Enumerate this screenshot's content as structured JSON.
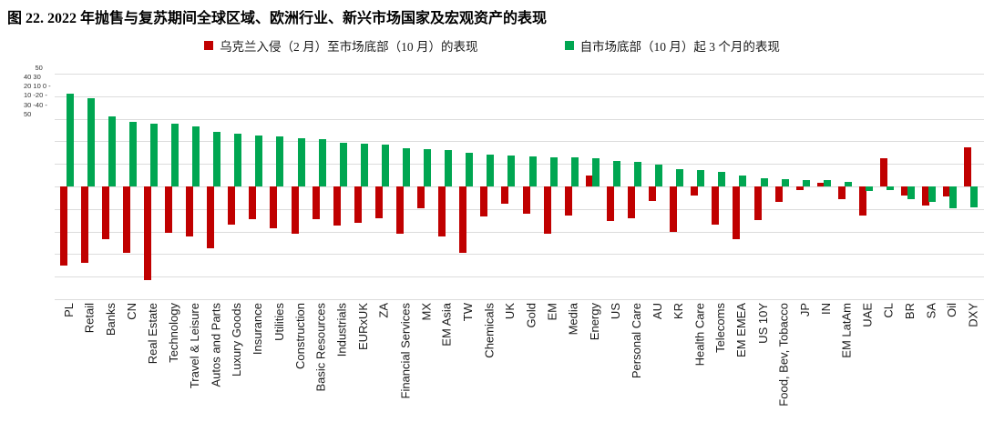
{
  "title": "图 22. 2022 年抛售与复苏期间全球区域、欧洲行业、新兴市场国家及宏观资产的表现",
  "legend": {
    "series1": "乌克兰入侵（2 月）至市场底部（10 月）的表现",
    "series2": "自市场底部（10 月）起 3 个月的表现"
  },
  "colors": {
    "selloff_red": "#C00000",
    "recovery_green": "#00A651",
    "gridline": "#DCDCDC"
  },
  "y_axis": {
    "text": "      50\n40 30\n20 10 0 -\n10 -20 -\n30 -40 -\n50"
  },
  "chart_data": {
    "type": "bar",
    "title": "图 22. 2022 年抛售与复苏期间全球区域、欧洲行业、新兴市场国家及宏观资产的表现",
    "xlabel": "",
    "ylabel": "%",
    "ylim": [
      -50,
      50
    ],
    "yticks": [
      50,
      40,
      30,
      20,
      10,
      0,
      -10,
      -20,
      -30,
      -40,
      -50
    ],
    "grid": true,
    "legend_position": "top",
    "categories": [
      "PL",
      "Retail",
      "Banks",
      "CN",
      "Real Estate",
      "Technology",
      "Travel & Leisure",
      "Autos and Parts",
      "Luxury Goods",
      "Insurance",
      "Utilities",
      "Construction",
      "Basic Resources",
      "Industrials",
      "EURxUK",
      "ZA",
      "Financial Services",
      "MX",
      "EM Asia",
      "TW",
      "Chemicals",
      "UK",
      "Gold",
      "EM",
      "Media",
      "Energy",
      "US",
      "Personal Care",
      "AU",
      "KR",
      "Health Care",
      "Telecoms",
      "EM EMEA",
      "US 10Y",
      "Food, Bev, Tobacco",
      "JP",
      "IN",
      "EM LatAm",
      "UAE",
      "CL",
      "BR",
      "SA",
      "Oil",
      "DXY"
    ],
    "series": [
      {
        "name": "乌克兰入侵（2 月）至市场底部（10 月）的表现",
        "color": "#C00000",
        "values": [
          -35,
          -34,
          -23.5,
          -29.5,
          -41.5,
          -20.5,
          -22,
          -27.5,
          -17,
          -14.5,
          -18.5,
          -21,
          -14.5,
          -17.5,
          -16,
          -14,
          -21,
          -9.5,
          -22,
          -29.5,
          -13.5,
          -7.5,
          -12,
          -21,
          -13,
          5,
          -15.5,
          -14,
          -6.5,
          -20,
          -4,
          -17,
          -23.5,
          -15,
          -7,
          -1.5,
          1.5,
          -5.5,
          -13,
          12.5,
          -4,
          -8.5,
          -4.5,
          17.5
        ]
      },
      {
        "name": "自市场底部（10 月）起 3 个月的表现",
        "color": "#00A651",
        "values": [
          41,
          39,
          31,
          28.5,
          28,
          28,
          26.5,
          24,
          23.5,
          22.5,
          22,
          21.5,
          21,
          19.5,
          19,
          18.5,
          17,
          16.5,
          16,
          15,
          14,
          13.8,
          13.4,
          13,
          12.8,
          12.4,
          11.2,
          10.8,
          9.7,
          7.7,
          7.2,
          6.5,
          4.7,
          3.8,
          3.1,
          3,
          2.7,
          2,
          -2,
          -1.8,
          -5.8,
          -7,
          -9.8,
          -9.4
        ]
      }
    ]
  }
}
